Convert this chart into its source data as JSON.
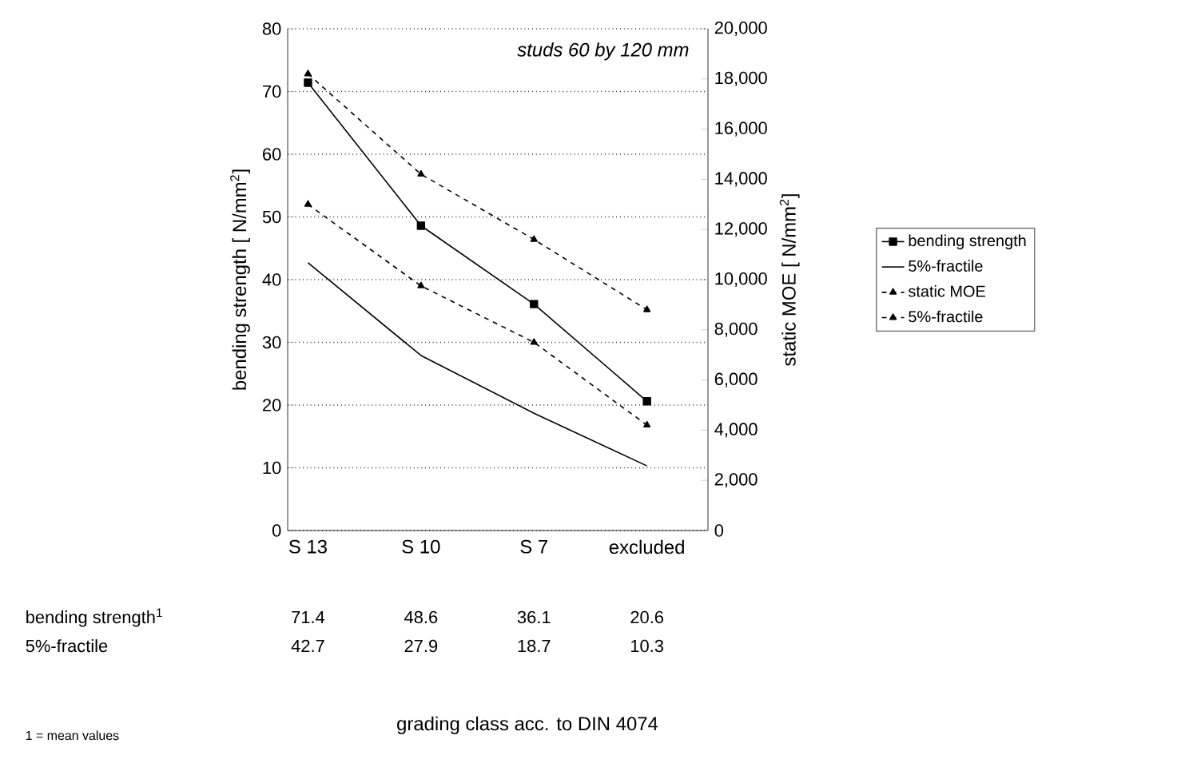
{
  "chart_data": {
    "type": "line",
    "title": "studs 60 by 120 mm",
    "ylabel": "bending strength [ N/mm$^{2}$]",
    "y2label": "static MOE [ N/mm$^{2}$]",
    "annotations": [
      "bending strength$^{1}$",
      "5%-fractile",
      "1 = mean values",
      "grading class acc. to DIN 4074"
    ],
    "categories": [
      "S 13",
      "S 10",
      "S 7",
      "excluded"
    ],
    "series": [
      {
        "name": "bending strength",
        "color": "#000000",
        "values": [
          71.4,
          48.6,
          36.1,
          20.6
        ],
        "value_labels": [
          "71.4",
          "48.6",
          "36.1",
          "20.6"
        ],
        "marker": "square",
        "line_style": "solid"
      },
      {
        "name": "5%-fractile",
        "color": "#000000",
        "values": [
          42.7,
          27.9,
          18.7,
          10.3
        ],
        "value_labels": [
          "42.7",
          "27.9",
          "18.7",
          "10.3"
        ],
        "marker": "none",
        "line_style": "solid"
      },
      {
        "name": "static MOE",
        "color": "#000000",
        "values": [
          18200,
          14200,
          11600,
          8800
        ],
        "axis": "y2",
        "marker": "triangle",
        "line_style": "dashed"
      },
      {
        "name": "5%-fractile",
        "color": "#000000",
        "values": [
          13000,
          9750,
          7500,
          4200
        ],
        "axis": "y2",
        "marker": "triangle",
        "line_style": "dashed"
      }
    ],
    "ylim": [
      0,
      80
    ],
    "yticks": [
      0,
      10,
      20,
      30,
      40,
      50,
      60,
      70,
      80
    ],
    "y2lim": [
      0,
      20000
    ],
    "y2ticks": [
      0,
      {
        "value": 2000,
        "label": "2,000"
      },
      {
        "value": 4000,
        "label": "4,000"
      },
      {
        "value": 6000,
        "label": "6,000"
      },
      {
        "value": 8000,
        "label": "8,000"
      },
      {
        "value": 10000,
        "label": "10,000"
      },
      {
        "value": 12000,
        "label": "12,000"
      },
      {
        "value": 14000,
        "label": "14,000"
      },
      {
        "value": 16000,
        "label": "16,000"
      },
      {
        "value": 18000,
        "label": "18,000"
      },
      {
        "value": 20000,
        "label": "20,000"
      }
    ],
    "grid": "y",
    "legend": "right"
  }
}
